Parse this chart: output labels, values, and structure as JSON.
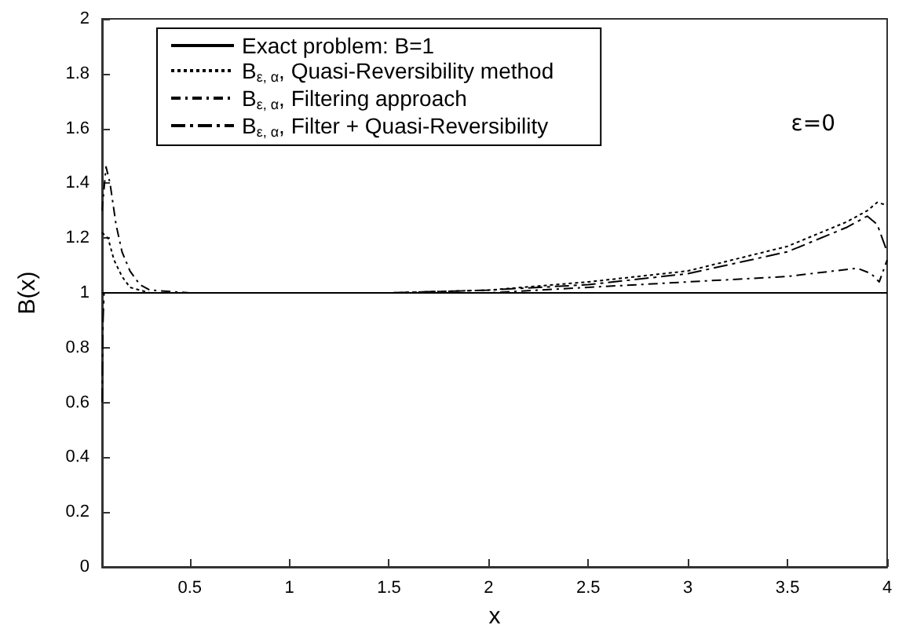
{
  "chart_data": {
    "type": "line",
    "xlabel": "x",
    "ylabel": "B(x)",
    "xlim": [
      0.06,
      4
    ],
    "ylim": [
      0,
      2
    ],
    "xticks": [
      0.5,
      1,
      1.5,
      2,
      2.5,
      3,
      3.5,
      4
    ],
    "yticks": [
      0,
      0.2,
      0.4,
      0.6,
      0.8,
      1,
      1.2,
      1.4,
      1.6,
      1.8,
      2
    ],
    "legend": "top left",
    "grid": false,
    "marker": "none",
    "annotations": [
      "ε=0"
    ],
    "series": [
      {
        "name": "Exact problem: B=1",
        "color": "#000000",
        "line_style": "solid",
        "x": [
          0.06,
          4
        ],
        "values": [
          1,
          1
        ]
      },
      {
        "name": "B$_{ε, α}$, Quasi-Reversibility method",
        "color": "#000000",
        "line_style": "dotted",
        "x": [
          0.06,
          0.09,
          0.12,
          0.16,
          0.2,
          0.25,
          0.3,
          0.5,
          1,
          1.5,
          2,
          2.5,
          3,
          3.5,
          3.8,
          3.9,
          3.95,
          4
        ],
        "values": [
          1.22,
          1.2,
          1.12,
          1.06,
          1.02,
          1.01,
          1,
          1,
          1,
          1,
          1.01,
          1.04,
          1.08,
          1.17,
          1.26,
          1.3,
          1.33,
          1.32
        ]
      },
      {
        "name": "B$_{ε, α}$, Filtering approach",
        "color": "#000000",
        "line_style": "dashed",
        "x": [
          0.06,
          0.08,
          0.1,
          0.13,
          0.16,
          0.2,
          0.25,
          0.3,
          0.5,
          1,
          1.5,
          2,
          2.5,
          3,
          3.5,
          3.85,
          3.92,
          3.96,
          4
        ],
        "values": [
          1.3,
          1.46,
          1.4,
          1.25,
          1.15,
          1.08,
          1.03,
          1.01,
          1,
          1,
          1,
          1,
          1.02,
          1.04,
          1.06,
          1.09,
          1.07,
          1.04,
          1.12
        ]
      },
      {
        "name": "B$_{ε, α}$, Filter + Quasi-Reversibility",
        "color": "#000000",
        "line_style": "dashdot",
        "x": [
          0.06,
          0.065,
          0.07,
          0.1,
          0.5,
          1,
          1.5,
          2,
          2.5,
          3,
          3.5,
          3.8,
          3.9,
          3.95,
          4
        ],
        "values": [
          0.6,
          0.9,
          1,
          1,
          1,
          1,
          1,
          1.01,
          1.03,
          1.07,
          1.15,
          1.24,
          1.28,
          1.25,
          1.15
        ]
      }
    ]
  }
}
